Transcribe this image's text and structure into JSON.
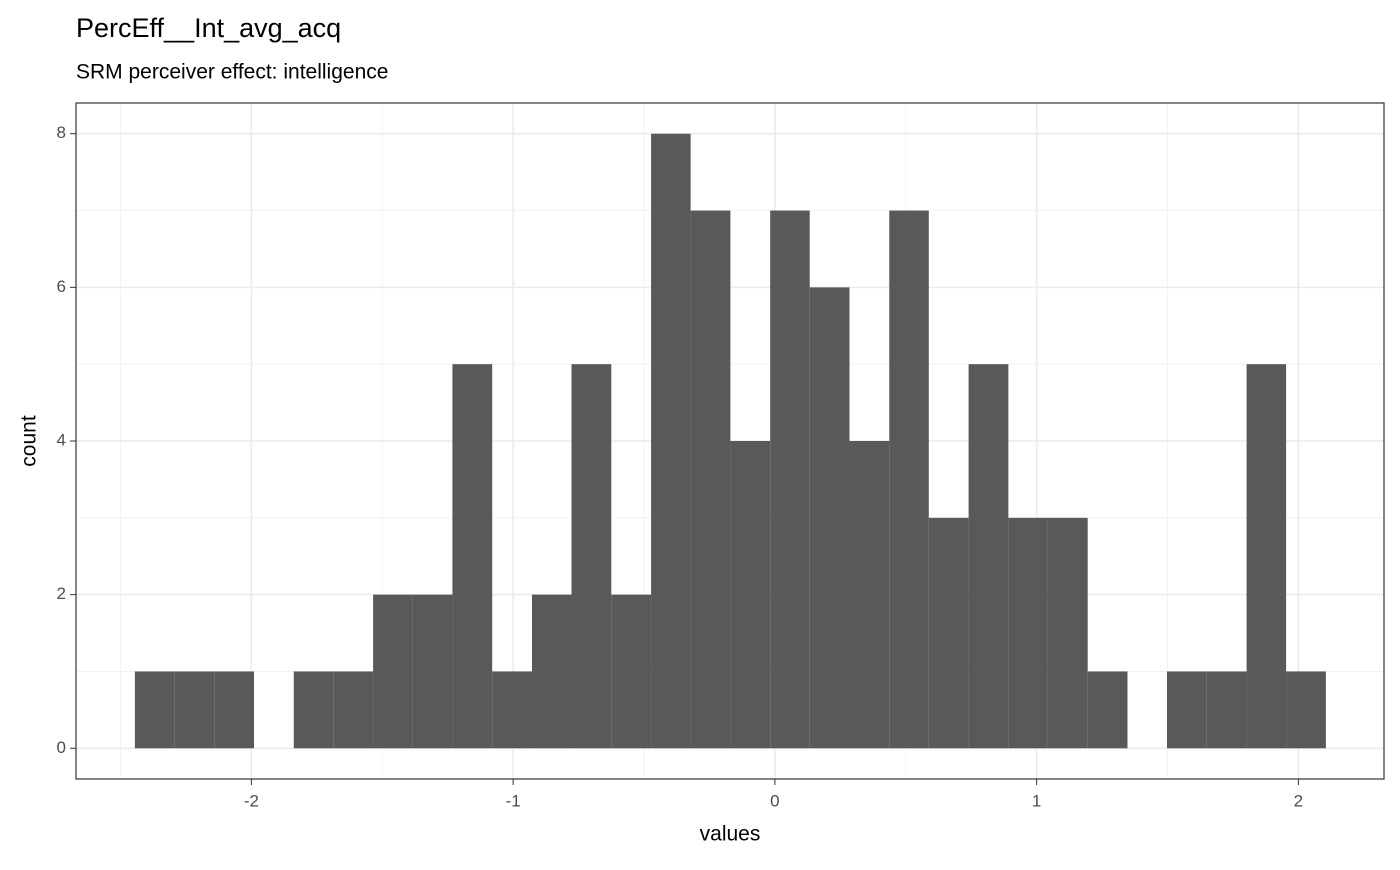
{
  "chart_data": {
    "type": "histogram",
    "title": "PercEff__Int_avg_acq",
    "subtitle": "SRM perceiver effect: intelligence",
    "x_label": "values",
    "y_label": "count",
    "bins": [
      -2.445,
      -2.293,
      -2.142,
      -1.99,
      -1.838,
      -1.687,
      -1.535,
      -1.383,
      -1.232,
      -1.08,
      -0.928,
      -0.777,
      -0.625,
      -0.473,
      -0.322,
      -0.17,
      -0.018,
      0.133,
      0.285,
      0.437,
      0.588,
      0.74,
      0.892,
      1.043,
      1.195,
      1.347,
      1.498,
      1.65,
      1.802,
      1.953,
      2.105
    ],
    "values": [
      1,
      1,
      1,
      0,
      1,
      1,
      2,
      2,
      5,
      1,
      2,
      5,
      2,
      8,
      7,
      4,
      7,
      6,
      4,
      7,
      3,
      5,
      3,
      3,
      1,
      0,
      1,
      1,
      5,
      1
    ],
    "color": "#595959",
    "xlim": [
      -2.67,
      2.327
    ],
    "xticks": [
      -2,
      -1,
      0,
      1,
      2
    ],
    "ylim": [
      -0.4,
      8.4
    ],
    "yticks": [
      0,
      2,
      4,
      6,
      8
    ],
    "grid": true,
    "minor_grid": true
  }
}
